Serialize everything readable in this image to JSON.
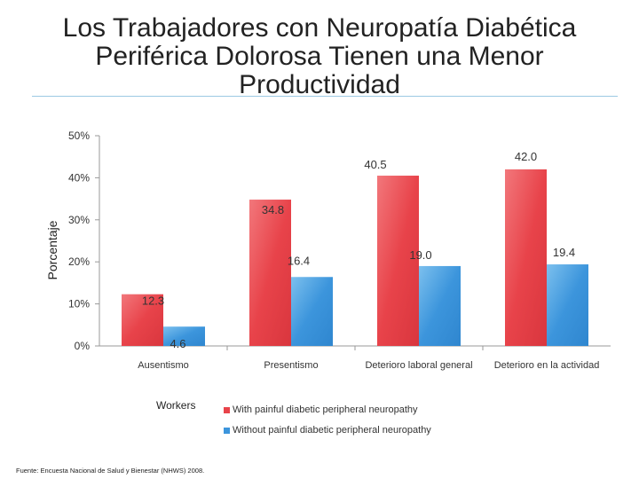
{
  "title": "Los Trabajadores con Neuropatía Diabética Periférica Dolorosa Tienen una Menor Productividad",
  "chart_data": {
    "type": "bar",
    "ylabel": "Porcentaje",
    "xlabel": "",
    "ylim": [
      0,
      50
    ],
    "yticks": [
      "0%",
      "10%",
      "20%",
      "30%",
      "40%",
      "50%"
    ],
    "categories": [
      "Ausentismo",
      "Presentismo",
      "Deterioro laboral general",
      "Deterioro en la actividad"
    ],
    "series": [
      {
        "name": "With painful diabetic peripheral neuropathy",
        "color": "#e8434a",
        "values": [
          12.3,
          34.8,
          40.5,
          42.0
        ],
        "labels": [
          "12.3",
          "34.8",
          "40.5",
          "42.0"
        ]
      },
      {
        "name": "Without painful diabetic peripheral neuropathy",
        "color": "#3c95dc",
        "values": [
          4.6,
          16.4,
          19.0,
          19.4
        ],
        "labels": [
          "4.6",
          "16.4",
          "19.0",
          "19.4"
        ]
      }
    ],
    "legend_title": "Workers",
    "legend_position": "bottom"
  },
  "source": "Fuente: Encuesta Nacional de Salud y Bienestar (NHWS) 2008."
}
